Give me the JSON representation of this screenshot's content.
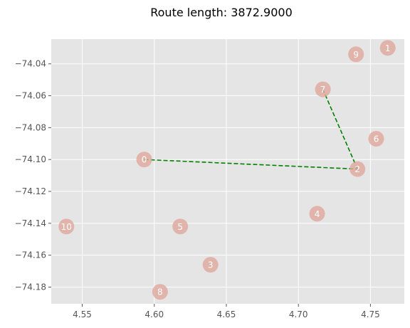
{
  "chart_data": {
    "type": "scatter",
    "title": "Route length: 3872.9000",
    "xlabel": "",
    "ylabel": "",
    "xlim": [
      4.5285,
      4.7735
    ],
    "ylim": [
      -74.1905,
      -74.0245
    ],
    "x_ticks": [
      4.55,
      4.6,
      4.65,
      4.7,
      4.75
    ],
    "x_tick_labels": [
      "4.55",
      "4.60",
      "4.65",
      "4.70",
      "4.75"
    ],
    "y_ticks": [
      -74.04,
      -74.06,
      -74.08,
      -74.1,
      -74.12,
      -74.14,
      -74.16,
      -74.18
    ],
    "y_tick_labels": [
      "−74.04",
      "−74.06",
      "−74.08",
      "−74.10",
      "−74.12",
      "−74.14",
      "−74.16",
      "−74.18"
    ],
    "grid": true,
    "points": [
      {
        "label": "0",
        "x": 4.593,
        "y": -74.1
      },
      {
        "label": "1",
        "x": 4.762,
        "y": -74.03
      },
      {
        "label": "2",
        "x": 4.741,
        "y": -74.106
      },
      {
        "label": "3",
        "x": 4.639,
        "y": -74.166
      },
      {
        "label": "4",
        "x": 4.713,
        "y": -74.134
      },
      {
        "label": "5",
        "x": 4.618,
        "y": -74.142
      },
      {
        "label": "6",
        "x": 4.754,
        "y": -74.087
      },
      {
        "label": "7",
        "x": 4.717,
        "y": -74.056
      },
      {
        "label": "8",
        "x": 4.604,
        "y": -74.183
      },
      {
        "label": "9",
        "x": 4.74,
        "y": -74.034
      },
      {
        "label": "10",
        "x": 4.539,
        "y": -74.142
      }
    ],
    "route": [
      0,
      2,
      7
    ],
    "colors": {
      "plot_background": "#e5e5e5",
      "grid": "#ffffff",
      "node": "#e0a89c",
      "route": "#008000",
      "node_label": "#ffffff"
    }
  }
}
